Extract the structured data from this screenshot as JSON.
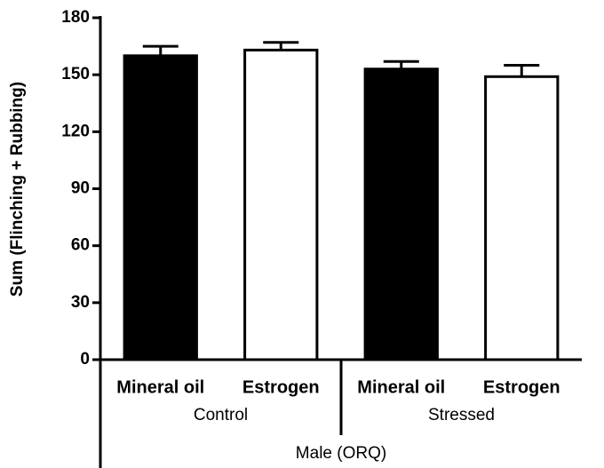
{
  "chart_data": {
    "type": "bar",
    "ylabel": "Sum (Flinching + Rubbing)",
    "categories": [
      "Mineral oil",
      "Estrogen",
      "Mineral oil",
      "Estrogen"
    ],
    "groups": [
      "Control",
      "Stressed"
    ],
    "supergroup": "Male (ORQ)",
    "values": [
      160,
      163,
      153,
      149
    ],
    "errors": [
      5,
      4,
      4,
      6
    ],
    "colors": [
      "#000000",
      "#ffffff",
      "#000000",
      "#ffffff"
    ],
    "ylim": [
      0,
      180
    ],
    "yticks": [
      0,
      30,
      60,
      90,
      120,
      150,
      180
    ]
  }
}
